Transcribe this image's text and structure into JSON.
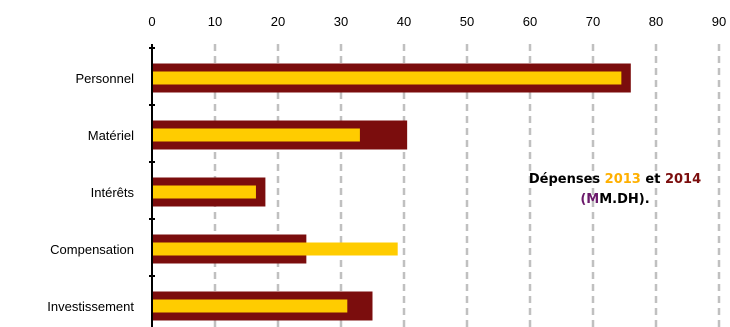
{
  "chart_data": {
    "type": "bar",
    "orientation": "horizontal",
    "categories": [
      "Personnel",
      "Matériel",
      "Intérêts",
      "Compensation",
      "Investissement"
    ],
    "series": [
      {
        "name": "2014",
        "color": "#7b0d0d",
        "values": [
          76,
          40.5,
          18,
          24.5,
          35
        ]
      },
      {
        "name": "2013",
        "color": "#ffcc00",
        "values": [
          74.5,
          33,
          16.5,
          39,
          31
        ]
      }
    ],
    "xlim": [
      0,
      90
    ],
    "xticks": [
      0,
      10,
      20,
      30,
      40,
      50,
      60,
      70,
      80,
      90
    ],
    "x_axis_position": "top",
    "grid": "vertical-dashed",
    "annotation": {
      "line1_prefix": "Dépenses",
      "line1_year_a": "2013",
      "line1_sep": "et",
      "line1_year_b": "2014",
      "line2_open": "(",
      "line2_m": "M",
      "line2_rest": "M.DH)."
    },
    "colors": {
      "grid": "#c0c0c0",
      "axis": "#000000",
      "paren": "#6b1a6b",
      "year_a": "#ffb000",
      "year_b": "#7b0d0d"
    }
  }
}
